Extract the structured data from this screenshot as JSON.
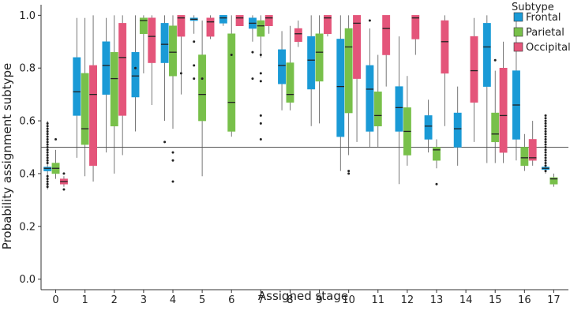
{
  "chart_data": {
    "type": "boxplot",
    "title": "",
    "xlabel": "Assigned stage",
    "ylabel": "Probability assignment subtype",
    "ylim": [
      -0.04,
      1.04
    ],
    "yticks": [
      "0.0",
      "0.2",
      "0.4",
      "0.6",
      "0.8",
      "1.0"
    ],
    "ytick_values": [
      0.0,
      0.2,
      0.4,
      0.6,
      0.8,
      1.0
    ],
    "reference_line": 0.5,
    "categories": [
      "0",
      "1",
      "2",
      "3",
      "4",
      "5",
      "6",
      "7",
      "8",
      "9",
      "10",
      "11",
      "12",
      "13",
      "14",
      "15",
      "16",
      "17"
    ],
    "legend": {
      "title": "Subtype",
      "position": "top-right",
      "entries": [
        {
          "name": "Frontal",
          "color": "#1a9ad6"
        },
        {
          "name": "Parietal",
          "color": "#78c04a"
        },
        {
          "name": "Occipital",
          "color": "#e4557a"
        }
      ]
    },
    "series": [
      {
        "name": "Frontal",
        "color": "#1a9ad6",
        "boxes": [
          {
            "stage": "0",
            "min": 0.34,
            "q1": 0.41,
            "median": 0.42,
            "q3": 0.425,
            "max": 0.6,
            "outliers": [
              0.35,
              0.36,
              0.37,
              0.38,
              0.39,
              0.44,
              0.45,
              0.46,
              0.47,
              0.48,
              0.49,
              0.5,
              0.51,
              0.52,
              0.53,
              0.54,
              0.55,
              0.56,
              0.57,
              0.58,
              0.59
            ]
          },
          {
            "stage": "1",
            "min": 0.46,
            "q1": 0.62,
            "median": 0.71,
            "q3": 0.84,
            "max": 0.99,
            "outliers": []
          },
          {
            "stage": "2",
            "min": 0.48,
            "q1": 0.7,
            "median": 0.81,
            "q3": 0.9,
            "max": 0.99,
            "outliers": []
          },
          {
            "stage": "3",
            "min": 0.56,
            "q1": 0.69,
            "median": 0.77,
            "q3": 0.86,
            "max": 1.0,
            "outliers": [
              0.8
            ]
          },
          {
            "stage": "4",
            "min": 0.6,
            "q1": 0.82,
            "median": 0.89,
            "q3": 0.97,
            "max": 1.0,
            "outliers": [
              0.52
            ]
          },
          {
            "stage": "5",
            "min": 0.93,
            "q1": 0.98,
            "median": 0.985,
            "q3": 0.99,
            "max": 1.0,
            "outliers": [
              0.9,
              0.81,
              0.76
            ]
          },
          {
            "stage": "6",
            "min": 0.96,
            "q1": 0.97,
            "median": 0.99,
            "q3": 1.0,
            "max": 1.0,
            "outliers": []
          },
          {
            "stage": "7",
            "min": 0.9,
            "q1": 0.95,
            "median": 0.97,
            "q3": 0.99,
            "max": 1.0,
            "outliers": [
              0.86,
              0.76
            ]
          },
          {
            "stage": "8",
            "min": 0.64,
            "q1": 0.74,
            "median": 0.81,
            "q3": 0.87,
            "max": 0.94,
            "outliers": []
          },
          {
            "stage": "9",
            "min": 0.58,
            "q1": 0.72,
            "median": 0.83,
            "q3": 0.92,
            "max": 1.0,
            "outliers": []
          },
          {
            "stage": "10",
            "min": 0.41,
            "q1": 0.54,
            "median": 0.73,
            "q3": 0.91,
            "max": 1.0,
            "outliers": []
          },
          {
            "stage": "11",
            "min": 0.5,
            "q1": 0.56,
            "median": 0.72,
            "q3": 0.81,
            "max": 0.95,
            "outliers": [
              0.98
            ]
          },
          {
            "stage": "12",
            "min": 0.36,
            "q1": 0.56,
            "median": 0.65,
            "q3": 0.73,
            "max": 0.92,
            "outliers": []
          },
          {
            "stage": "13",
            "min": 0.48,
            "q1": 0.53,
            "median": 0.58,
            "q3": 0.62,
            "max": 0.68,
            "outliers": []
          },
          {
            "stage": "14",
            "min": 0.43,
            "q1": 0.5,
            "median": 0.57,
            "q3": 0.63,
            "max": 0.73,
            "outliers": []
          },
          {
            "stage": "15",
            "min": 0.44,
            "q1": 0.73,
            "median": 0.88,
            "q3": 0.97,
            "max": 1.0,
            "outliers": []
          },
          {
            "stage": "16",
            "min": 0.45,
            "q1": 0.53,
            "median": 0.66,
            "q3": 0.79,
            "max": 0.98,
            "outliers": []
          },
          {
            "stage": "17",
            "min": 0.4,
            "q1": 0.415,
            "median": 0.42,
            "q3": 0.425,
            "max": 0.44,
            "outliers": [
              0.41,
              0.43,
              0.44,
              0.45,
              0.46,
              0.47,
              0.48,
              0.49,
              0.5,
              0.51,
              0.52,
              0.53,
              0.54,
              0.55,
              0.56,
              0.57,
              0.58,
              0.59,
              0.6,
              0.61,
              0.62
            ]
          }
        ]
      },
      {
        "name": "Parietal",
        "color": "#78c04a",
        "boxes": [
          {
            "stage": "0",
            "min": 0.38,
            "q1": 0.4,
            "median": 0.42,
            "q3": 0.44,
            "max": 0.49,
            "outliers": [
              0.53
            ]
          },
          {
            "stage": "1",
            "min": 0.39,
            "q1": 0.51,
            "median": 0.57,
            "q3": 0.78,
            "max": 0.99,
            "outliers": []
          },
          {
            "stage": "2",
            "min": 0.4,
            "q1": 0.58,
            "median": 0.76,
            "q3": 0.86,
            "max": 1.0,
            "outliers": []
          },
          {
            "stage": "3",
            "min": 0.78,
            "q1": 0.93,
            "median": 0.98,
            "q3": 0.99,
            "max": 1.0,
            "outliers": []
          },
          {
            "stage": "4",
            "min": 0.57,
            "q1": 0.77,
            "median": 0.86,
            "q3": 0.96,
            "max": 1.0,
            "outliers": [
              0.48,
              0.45,
              0.37
            ]
          },
          {
            "stage": "5",
            "min": 0.39,
            "q1": 0.6,
            "median": 0.7,
            "q3": 0.85,
            "max": 0.98,
            "outliers": [
              0.76
            ]
          },
          {
            "stage": "6",
            "min": 0.54,
            "q1": 0.56,
            "median": 0.67,
            "q3": 0.93,
            "max": 1.0,
            "outliers": [
              0.85
            ]
          },
          {
            "stage": "7",
            "min": 0.84,
            "q1": 0.92,
            "median": 0.96,
            "q3": 0.98,
            "max": 1.0,
            "outliers": [
              0.85,
              0.78,
              0.75,
              0.62,
              0.59,
              0.53
            ]
          },
          {
            "stage": "8",
            "min": 0.64,
            "q1": 0.67,
            "median": 0.7,
            "q3": 0.82,
            "max": 0.96,
            "outliers": []
          },
          {
            "stage": "9",
            "min": 0.59,
            "q1": 0.75,
            "median": 0.86,
            "q3": 0.93,
            "max": 1.0,
            "outliers": []
          },
          {
            "stage": "10",
            "min": 0.47,
            "q1": 0.63,
            "median": 0.88,
            "q3": 0.95,
            "max": 1.0,
            "outliers": [
              0.41,
              0.4
            ]
          },
          {
            "stage": "11",
            "min": 0.5,
            "q1": 0.58,
            "median": 0.62,
            "q3": 0.71,
            "max": 0.85,
            "outliers": []
          },
          {
            "stage": "12",
            "min": 0.43,
            "q1": 0.47,
            "median": 0.56,
            "q3": 0.65,
            "max": 0.77,
            "outliers": []
          },
          {
            "stage": "13",
            "min": 0.42,
            "q1": 0.45,
            "median": 0.49,
            "q3": 0.5,
            "max": 0.53,
            "outliers": [
              0.36
            ]
          },
          {
            "stage": "15",
            "min": 0.44,
            "q1": 0.52,
            "median": 0.55,
            "q3": 0.63,
            "max": 0.79,
            "outliers": [
              0.83
            ]
          },
          {
            "stage": "16",
            "min": 0.41,
            "q1": 0.43,
            "median": 0.46,
            "q3": 0.5,
            "max": 0.55,
            "outliers": []
          },
          {
            "stage": "17",
            "min": 0.35,
            "q1": 0.36,
            "median": 0.38,
            "q3": 0.385,
            "max": 0.4,
            "outliers": []
          }
        ]
      },
      {
        "name": "Occipital",
        "color": "#e4557a",
        "boxes": [
          {
            "stage": "0",
            "min": 0.35,
            "q1": 0.36,
            "median": 0.37,
            "q3": 0.38,
            "max": 0.39,
            "outliers": [
              0.4,
              0.34
            ]
          },
          {
            "stage": "1",
            "min": 0.37,
            "q1": 0.43,
            "median": 0.7,
            "q3": 0.81,
            "max": 1.0,
            "outliers": []
          },
          {
            "stage": "2",
            "min": 0.47,
            "q1": 0.62,
            "median": 0.84,
            "q3": 0.97,
            "max": 1.0,
            "outliers": []
          },
          {
            "stage": "3",
            "min": 0.66,
            "q1": 0.82,
            "median": 0.92,
            "q3": 0.99,
            "max": 1.0,
            "outliers": []
          },
          {
            "stage": "4",
            "min": 0.7,
            "q1": 0.92,
            "median": 0.99,
            "q3": 1.0,
            "max": 1.0,
            "outliers": [
              0.78
            ]
          },
          {
            "stage": "5",
            "min": 0.91,
            "q1": 0.92,
            "median": 0.975,
            "q3": 0.99,
            "max": 1.0,
            "outliers": []
          },
          {
            "stage": "6",
            "min": 0.96,
            "q1": 0.96,
            "median": 0.99,
            "q3": 1.0,
            "max": 1.0,
            "outliers": []
          },
          {
            "stage": "7",
            "min": 0.93,
            "q1": 0.96,
            "median": 0.99,
            "q3": 1.0,
            "max": 1.0,
            "outliers": []
          },
          {
            "stage": "8",
            "min": 0.88,
            "q1": 0.9,
            "median": 0.93,
            "q3": 0.95,
            "max": 0.98,
            "outliers": []
          },
          {
            "stage": "9",
            "min": 0.92,
            "q1": 0.93,
            "median": 0.99,
            "q3": 1.0,
            "max": 1.0,
            "outliers": []
          },
          {
            "stage": "10",
            "min": 0.52,
            "q1": 0.76,
            "median": 0.97,
            "q3": 1.0,
            "max": 1.0,
            "outliers": []
          },
          {
            "stage": "11",
            "min": 0.73,
            "q1": 0.85,
            "median": 0.95,
            "q3": 1.0,
            "max": 1.0,
            "outliers": []
          },
          {
            "stage": "12",
            "min": 0.85,
            "q1": 0.91,
            "median": 0.99,
            "q3": 1.0,
            "max": 1.0,
            "outliers": []
          },
          {
            "stage": "13",
            "min": 0.58,
            "q1": 0.78,
            "median": 0.9,
            "q3": 0.98,
            "max": 1.0,
            "outliers": []
          },
          {
            "stage": "14",
            "min": 0.52,
            "q1": 0.67,
            "median": 0.79,
            "q3": 0.92,
            "max": 0.99,
            "outliers": []
          },
          {
            "stage": "15",
            "min": 0.44,
            "q1": 0.48,
            "median": 0.62,
            "q3": 0.8,
            "max": 0.9,
            "outliers": []
          },
          {
            "stage": "16",
            "min": 0.43,
            "q1": 0.45,
            "median": 0.46,
            "q3": 0.53,
            "max": 0.6,
            "outliers": []
          }
        ]
      }
    ]
  }
}
